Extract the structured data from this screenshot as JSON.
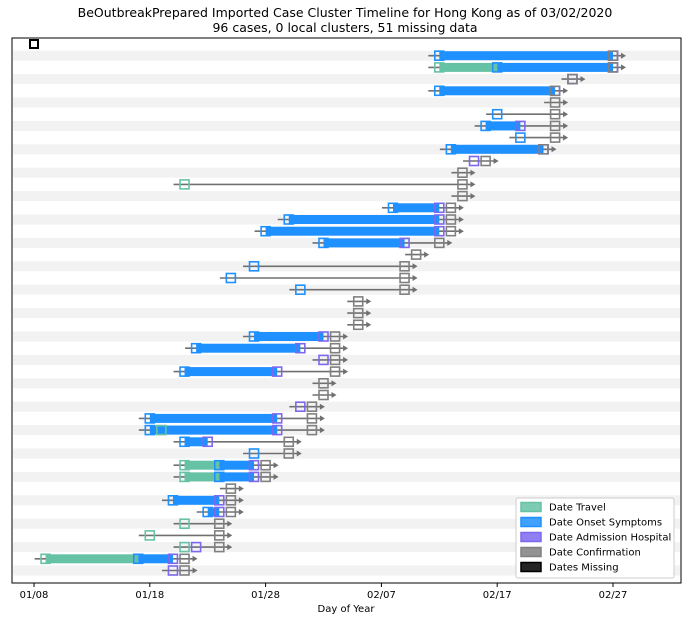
{
  "chart_data": {
    "type": "timeline",
    "title": "BeOutbreakPrepared Imported Case Cluster Timeline for Hong Kong as of 03/02/2020",
    "subtitle": "96 cases, 0 local clusters, 51 missing data",
    "xlabel": "Day of Year",
    "ylabel": "",
    "x_ticks": [
      "01/08",
      "01/18",
      "01/28",
      "02/07",
      "02/17",
      "02/27"
    ],
    "x_tick_days": [
      8,
      18,
      28,
      38,
      48,
      58
    ],
    "xlim": [
      6,
      63
    ],
    "row_count": 46,
    "missing_marker": {
      "day": 8,
      "row": 0
    },
    "legend": {
      "position": "lower-right",
      "entries": [
        {
          "key": "travel",
          "label": "Date Travel"
        },
        {
          "key": "onset",
          "label": "Date Onset Symptoms"
        },
        {
          "key": "admission",
          "label": "Date Admission Hospital"
        },
        {
          "key": "confirmation",
          "label": "Date Confirmation"
        },
        {
          "key": "missing",
          "label": "Dates Missing"
        }
      ]
    },
    "colors": {
      "travel": "#66c2a5",
      "onset": "#1e90ff",
      "admission": "#7b68ee",
      "confirmation": "#808080",
      "missing": "#000000",
      "band": "#f2f2f2",
      "arrow": "#707070"
    },
    "cases": [
      {
        "row": 1,
        "travel": 43.0,
        "onset": 43.0,
        "admission": 58.0,
        "confirmation": 58.0
      },
      {
        "row": 2,
        "travel": 43.0,
        "onset": 48.0,
        "admission": 58.0,
        "confirmation": 58.0
      },
      {
        "row": 3,
        "admission": 54.5,
        "confirmation": 54.5
      },
      {
        "row": 4,
        "onset": 43.0,
        "admission": 53.0,
        "confirmation": 53.0
      },
      {
        "row": 5,
        "confirmation": 53.0
      },
      {
        "row": 6,
        "onset": 48.0,
        "confirmation": 53.0
      },
      {
        "row": 7,
        "onset": 47.0,
        "admission": 50.0,
        "confirmation": 53.0
      },
      {
        "row": 8,
        "onset": 50.0,
        "confirmation": 53.0
      },
      {
        "row": 9,
        "onset": 44.0,
        "admission": 52.0,
        "confirmation": 52.0
      },
      {
        "row": 10,
        "admission": 46.0,
        "confirmation": 47.0
      },
      {
        "row": 11,
        "confirmation": 45.0
      },
      {
        "row": 12,
        "travel": 21.0,
        "confirmation": 45.0
      },
      {
        "row": 13,
        "confirmation": 45.0
      },
      {
        "row": 14,
        "onset": 39.0,
        "admission": 43.0,
        "confirmation": 44.0
      },
      {
        "row": 15,
        "onset": 30.0,
        "admission": 43.0,
        "confirmation": 44.0
      },
      {
        "row": 16,
        "onset": 28.0,
        "admission": 43.0,
        "confirmation": 44.0
      },
      {
        "row": 17,
        "onset": 33.0,
        "admission": 40.0,
        "confirmation": 43.0
      },
      {
        "row": 18,
        "confirmation": 41.0
      },
      {
        "row": 19,
        "onset": 27.0,
        "confirmation": 40.0
      },
      {
        "row": 20,
        "onset": 25.0,
        "confirmation": 40.0
      },
      {
        "row": 21,
        "onset": 31.0,
        "confirmation": 40.0
      },
      {
        "row": 22,
        "confirmation": 36.0
      },
      {
        "row": 23,
        "confirmation": 36.0
      },
      {
        "row": 24,
        "confirmation": 36.0
      },
      {
        "row": 25,
        "onset": 27.0,
        "admission": 33.0,
        "confirmation": 34.0
      },
      {
        "row": 26,
        "onset": 22.0,
        "admission": 31.0,
        "confirmation": 34.0
      },
      {
        "row": 27,
        "admission": 33.0,
        "confirmation": 34.0
      },
      {
        "row": 28,
        "onset": 21.0,
        "admission": 29.0,
        "confirmation": 34.0
      },
      {
        "row": 29,
        "confirmation": 33.0
      },
      {
        "row": 30,
        "confirmation": 33.0
      },
      {
        "row": 31,
        "admission": 31.0,
        "confirmation": 32.0
      },
      {
        "row": 32,
        "onset": 18.0,
        "admission": 29.0,
        "confirmation": 32.0
      },
      {
        "row": 33,
        "travel": 19.0,
        "onset": 18.0,
        "admission": 29.0,
        "confirmation": 32.0
      },
      {
        "row": 34,
        "onset": 21.0,
        "admission": 23.0,
        "confirmation": 30.0
      },
      {
        "row": 35,
        "onset": 27.0,
        "confirmation": 30.0
      },
      {
        "row": 36,
        "travel": 21.0,
        "onset": 24.0,
        "admission": 27.0,
        "confirmation": 28.0
      },
      {
        "row": 37,
        "travel": 21.0,
        "onset": 24.0,
        "admission": 27.0,
        "confirmation": 28.0
      },
      {
        "row": 38,
        "confirmation": 25.0
      },
      {
        "row": 39,
        "onset": 20.0,
        "admission": 24.0,
        "confirmation": 25.0
      },
      {
        "row": 40,
        "onset": 23.0,
        "admission": 24.0,
        "confirmation": 25.0
      },
      {
        "row": 41,
        "travel": 21.0,
        "confirmation": 24.0
      },
      {
        "row": 42,
        "travel": 18.0,
        "confirmation": 24.0
      },
      {
        "row": 43,
        "travel": 21.0,
        "admission": 22.0,
        "confirmation": 24.0
      },
      {
        "row": 44,
        "travel": 9.0,
        "onset": 17.0,
        "admission": 20.0,
        "confirmation": 21.0
      },
      {
        "row": 45,
        "admission": 20.0,
        "confirmation": 21.0
      }
    ]
  }
}
